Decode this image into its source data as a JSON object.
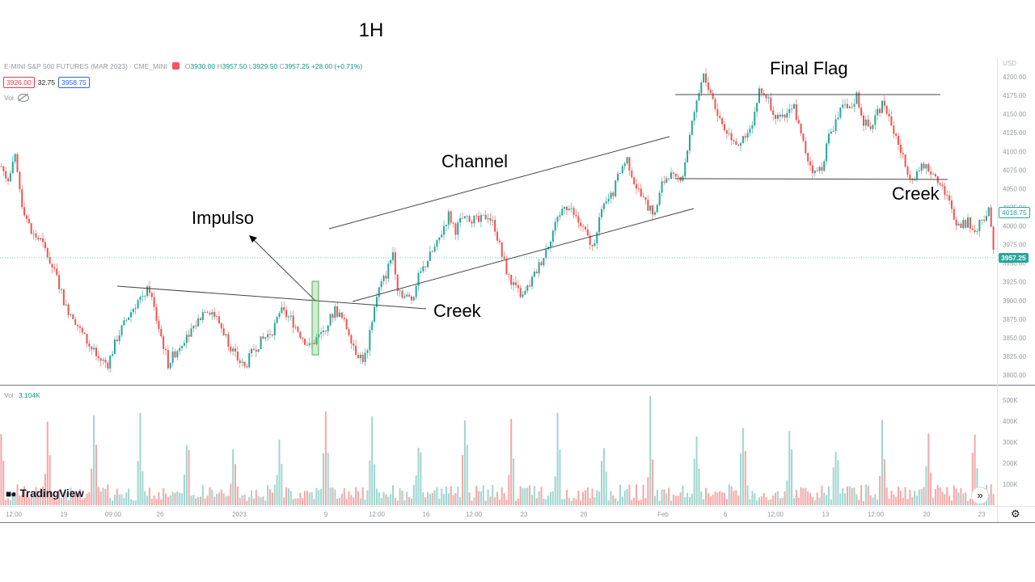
{
  "title": "1H",
  "legend": {
    "symbol": "E-MINI S&P 500 FUTURES (MAR 2023) · CME_MINI",
    "open_label": "O",
    "open": "3930.00",
    "high_label": "H",
    "high": "3957.50",
    "low_label": "L",
    "low": "3929.50",
    "close_label": "C",
    "close": "3957.25",
    "change": "+28.00 (+0.71%)"
  },
  "badges": {
    "bid": "3926.00",
    "spread": "32.75",
    "ask": "3958.75"
  },
  "vol_label": "Vol",
  "vol_pane": {
    "label": "Vol",
    "value": "3.104K"
  },
  "brand": "TradingView",
  "annotations": {
    "impulso": "Impulso",
    "channel": "Channel",
    "creek_left": "Creek",
    "final_flag": "Final Flag",
    "creek_right": "Creek"
  },
  "price_tags": {
    "mid": "4018.75",
    "last": "3957.25"
  },
  "colors": {
    "up": "#26a69a",
    "down": "#ef5350",
    "up_vol": "#9fd6cf",
    "down_vol": "#f5a7a7"
  },
  "chart_data": {
    "type": "candlestick",
    "currency_label": "USD",
    "y_ticks": [
      3800,
      3825,
      3850,
      3875,
      3900,
      3925,
      3950,
      3975,
      4000,
      4025,
      4050,
      4075,
      4100,
      4125,
      4150,
      4175,
      4200
    ],
    "ylim": [
      3785,
      4215
    ],
    "vol_ticks": [
      "100K",
      "200K",
      "300K",
      "400K",
      "500K"
    ],
    "vol_ylim": [
      0,
      550000
    ],
    "x_ticks": [
      "12:00",
      "19",
      "09:00",
      "26",
      "2023",
      "9",
      "12:00",
      "16",
      "12:00",
      "23",
      "26",
      "Feb",
      "6",
      "12:00",
      "13",
      "12:00",
      "20",
      "23"
    ],
    "last_price": 3957.25,
    "price_path": [
      [
        0,
        4080
      ],
      [
        3,
        4060
      ],
      [
        6,
        4090
      ],
      [
        9,
        4030
      ],
      [
        13,
        3990
      ],
      [
        17,
        3980
      ],
      [
        20,
        3960
      ],
      [
        24,
        3930
      ],
      [
        28,
        3890
      ],
      [
        31,
        3880
      ],
      [
        34,
        3860
      ],
      [
        38,
        3840
      ],
      [
        42,
        3822
      ],
      [
        46,
        3815
      ],
      [
        50,
        3850
      ],
      [
        55,
        3880
      ],
      [
        60,
        3905
      ],
      [
        64,
        3915
      ],
      [
        67,
        3875
      ],
      [
        70,
        3840
      ],
      [
        72,
        3815
      ],
      [
        76,
        3835
      ],
      [
        80,
        3855
      ],
      [
        84,
        3868
      ],
      [
        88,
        3890
      ],
      [
        91,
        3885
      ],
      [
        94,
        3870
      ],
      [
        98,
        3845
      ],
      [
        101,
        3825
      ],
      [
        105,
        3810
      ],
      [
        109,
        3835
      ],
      [
        113,
        3848
      ],
      [
        117,
        3860
      ],
      [
        121,
        3885
      ],
      [
        125,
        3875
      ],
      [
        129,
        3855
      ],
      [
        133,
        3838
      ],
      [
        137,
        3852
      ],
      [
        141,
        3870
      ],
      [
        144,
        3888
      ],
      [
        147,
        3875
      ],
      [
        150,
        3858
      ],
      [
        153,
        3832
      ],
      [
        156,
        3822
      ],
      [
        158,
        3830
      ],
      [
        160,
        3878
      ],
      [
        163,
        3915
      ],
      [
        166,
        3935
      ],
      [
        169,
        3965
      ],
      [
        171,
        3918
      ],
      [
        174,
        3905
      ],
      [
        177,
        3902
      ],
      [
        180,
        3930
      ],
      [
        184,
        3955
      ],
      [
        188,
        3975
      ],
      [
        191,
        4000
      ],
      [
        193,
        4015
      ],
      [
        196,
        3995
      ],
      [
        199,
        4010
      ],
      [
        202,
        4012
      ],
      [
        206,
        4005
      ],
      [
        210,
        4015
      ],
      [
        213,
        3998
      ],
      [
        216,
        3960
      ],
      [
        219,
        3930
      ],
      [
        222,
        3915
      ],
      [
        225,
        3905
      ],
      [
        228,
        3922
      ],
      [
        231,
        3940
      ],
      [
        234,
        3960
      ],
      [
        237,
        3985
      ],
      [
        240,
        4010
      ],
      [
        243,
        4030
      ],
      [
        246,
        4020
      ],
      [
        249,
        4005
      ],
      [
        252,
        3990
      ],
      [
        255,
        3970
      ],
      [
        258,
        4010
      ],
      [
        261,
        4030
      ],
      [
        264,
        4045
      ],
      [
        267,
        4075
      ],
      [
        270,
        4090
      ],
      [
        273,
        4060
      ],
      [
        276,
        4040
      ],
      [
        279,
        4025
      ],
      [
        282,
        4015
      ],
      [
        285,
        4055
      ],
      [
        288,
        4070
      ],
      [
        291,
        4060
      ],
      [
        294,
        4070
      ],
      [
        297,
        4120
      ],
      [
        300,
        4170
      ],
      [
        303,
        4200
      ],
      [
        306,
        4180
      ],
      [
        309,
        4150
      ],
      [
        312,
        4130
      ],
      [
        315,
        4120
      ],
      [
        318,
        4110
      ],
      [
        321,
        4125
      ],
      [
        324,
        4140
      ],
      [
        327,
        4180
      ],
      [
        330,
        4175
      ],
      [
        333,
        4155
      ],
      [
        336,
        4140
      ],
      [
        339,
        4150
      ],
      [
        342,
        4160
      ],
      [
        345,
        4120
      ],
      [
        348,
        4090
      ],
      [
        351,
        4070
      ],
      [
        354,
        4080
      ],
      [
        357,
        4120
      ],
      [
        360,
        4140
      ],
      [
        363,
        4160
      ],
      [
        366,
        4155
      ],
      [
        369,
        4175
      ],
      [
        372,
        4140
      ],
      [
        375,
        4130
      ],
      [
        378,
        4155
      ],
      [
        381,
        4165
      ],
      [
        384,
        4135
      ],
      [
        387,
        4110
      ],
      [
        390,
        4080
      ],
      [
        393,
        4065
      ],
      [
        396,
        4075
      ],
      [
        399,
        4080
      ],
      [
        402,
        4070
      ],
      [
        405,
        4060
      ],
      [
        408,
        4040
      ],
      [
        411,
        4010
      ],
      [
        414,
        4000
      ],
      [
        417,
        4005
      ],
      [
        420,
        3995
      ],
      [
        423,
        4010
      ],
      [
        426,
        4020
      ],
      [
        428,
        3975
      ]
    ],
    "n_candles": 429
  }
}
